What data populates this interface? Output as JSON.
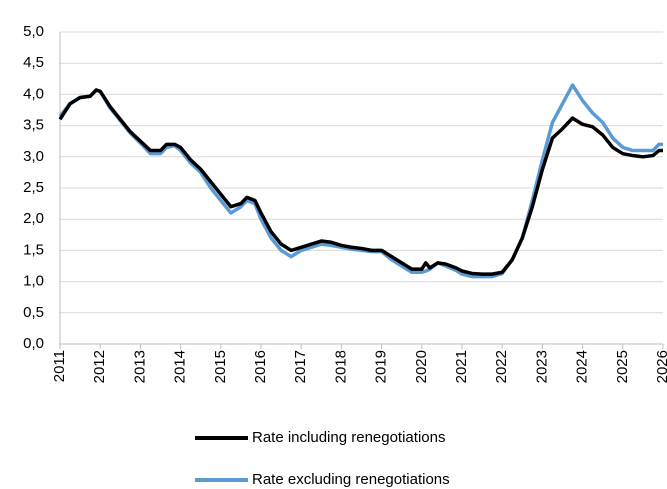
{
  "chart_data": {
    "type": "line",
    "x": [
      2011.0,
      2011.25,
      2011.5,
      2011.75,
      2011.9,
      2012.0,
      2012.25,
      2012.5,
      2012.75,
      2013.0,
      2013.25,
      2013.5,
      2013.65,
      2013.85,
      2014.0,
      2014.25,
      2014.5,
      2014.75,
      2015.0,
      2015.25,
      2015.5,
      2015.65,
      2015.85,
      2016.0,
      2016.25,
      2016.5,
      2016.75,
      2017.0,
      2017.25,
      2017.5,
      2017.75,
      2018.0,
      2018.25,
      2018.5,
      2018.75,
      2019.0,
      2019.25,
      2019.5,
      2019.75,
      2020.0,
      2020.1,
      2020.2,
      2020.4,
      2020.6,
      2020.85,
      2021.0,
      2021.25,
      2021.5,
      2021.75,
      2022.0,
      2022.25,
      2022.5,
      2022.75,
      2023.0,
      2023.25,
      2023.5,
      2023.75,
      2024.0,
      2024.25,
      2024.5,
      2024.75,
      2025.0,
      2025.25,
      2025.5,
      2025.75,
      2025.9,
      2026.0
    ],
    "series": [
      {
        "name": "Rate including renegotiations",
        "color": "#000000",
        "values": [
          3.6,
          3.85,
          3.95,
          3.97,
          4.07,
          4.05,
          3.8,
          3.6,
          3.4,
          3.25,
          3.1,
          3.1,
          3.2,
          3.2,
          3.15,
          2.95,
          2.8,
          2.6,
          2.4,
          2.2,
          2.25,
          2.35,
          2.3,
          2.1,
          1.8,
          1.6,
          1.5,
          1.55,
          1.6,
          1.65,
          1.63,
          1.58,
          1.55,
          1.53,
          1.5,
          1.5,
          1.4,
          1.3,
          1.2,
          1.2,
          1.3,
          1.22,
          1.3,
          1.28,
          1.22,
          1.17,
          1.13,
          1.12,
          1.12,
          1.15,
          1.35,
          1.7,
          2.2,
          2.8,
          3.3,
          3.45,
          3.62,
          3.52,
          3.48,
          3.35,
          3.15,
          3.05,
          3.02,
          3.0,
          3.02,
          3.1,
          3.1
        ]
      },
      {
        "name": "Rate excluding renegotiations",
        "color": "#5b9bd5",
        "values": [
          3.65,
          3.85,
          3.95,
          3.97,
          4.07,
          4.05,
          3.78,
          3.58,
          3.38,
          3.22,
          3.05,
          3.05,
          3.15,
          3.18,
          3.1,
          2.9,
          2.75,
          2.5,
          2.3,
          2.1,
          2.2,
          2.3,
          2.25,
          2.0,
          1.7,
          1.5,
          1.4,
          1.5,
          1.55,
          1.6,
          1.58,
          1.55,
          1.52,
          1.5,
          1.48,
          1.48,
          1.35,
          1.25,
          1.15,
          1.15,
          1.17,
          1.2,
          1.3,
          1.25,
          1.18,
          1.12,
          1.08,
          1.08,
          1.08,
          1.13,
          1.35,
          1.7,
          2.3,
          2.95,
          3.55,
          3.85,
          4.15,
          3.9,
          3.7,
          3.55,
          3.3,
          3.15,
          3.1,
          3.1,
          3.1,
          3.2,
          3.2
        ]
      }
    ],
    "xlim": [
      2011,
      2026
    ],
    "xticks": [
      2011,
      2012,
      2013,
      2014,
      2015,
      2016,
      2017,
      2018,
      2019,
      2020,
      2021,
      2022,
      2023,
      2024,
      2025,
      2026
    ],
    "ylim": [
      0,
      5
    ],
    "yticks": [
      {
        "value": 0,
        "label": "0,0"
      },
      {
        "value": 0.5,
        "label": "0,5"
      },
      {
        "value": 1,
        "label": "1,0"
      },
      {
        "value": 1.5,
        "label": "1,5"
      },
      {
        "value": 2,
        "label": "2,0"
      },
      {
        "value": 2.5,
        "label": "2,5"
      },
      {
        "value": 3,
        "label": "3,0"
      },
      {
        "value": 3.5,
        "label": "3,5"
      },
      {
        "value": 4,
        "label": "4,0"
      },
      {
        "value": 4.5,
        "label": "4,5"
      },
      {
        "value": 5,
        "label": "5,0"
      }
    ],
    "grid": true,
    "legend": "bottom"
  }
}
